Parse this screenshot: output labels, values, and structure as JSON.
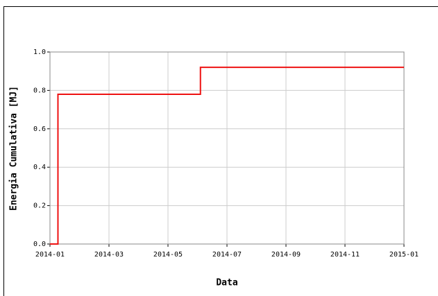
{
  "chart_data": {
    "type": "line",
    "ylabel": "Energia Cumulativa [MJ]",
    "xlabel": "Data",
    "series": [
      {
        "color": "#ee1111",
        "x": [
          0,
          0.27,
          0.27,
          5.1,
          5.1,
          12
        ],
        "values": [
          0,
          0,
          0.78,
          0.78,
          0.92,
          0.92
        ]
      }
    ],
    "xlim": [
      0,
      12
    ],
    "xticks": [
      {
        "value": 0,
        "label": "2014-01"
      },
      {
        "value": 2,
        "label": "2014-03"
      },
      {
        "value": 4,
        "label": "2014-05"
      },
      {
        "value": 6,
        "label": "2014-07"
      },
      {
        "value": 8,
        "label": "2014-09"
      },
      {
        "value": 10,
        "label": "2014-11"
      },
      {
        "value": 12,
        "label": "2015-01"
      }
    ],
    "ylim": [
      0,
      1
    ],
    "yticks": [
      {
        "value": 0,
        "label": "0.0"
      },
      {
        "value": 0.2,
        "label": "0.2"
      },
      {
        "value": 0.4,
        "label": "0.4"
      },
      {
        "value": 0.6,
        "label": "0.6"
      },
      {
        "value": 0.8,
        "label": "0.8"
      },
      {
        "value": 1,
        "label": "1.0"
      }
    ],
    "grid": true
  }
}
